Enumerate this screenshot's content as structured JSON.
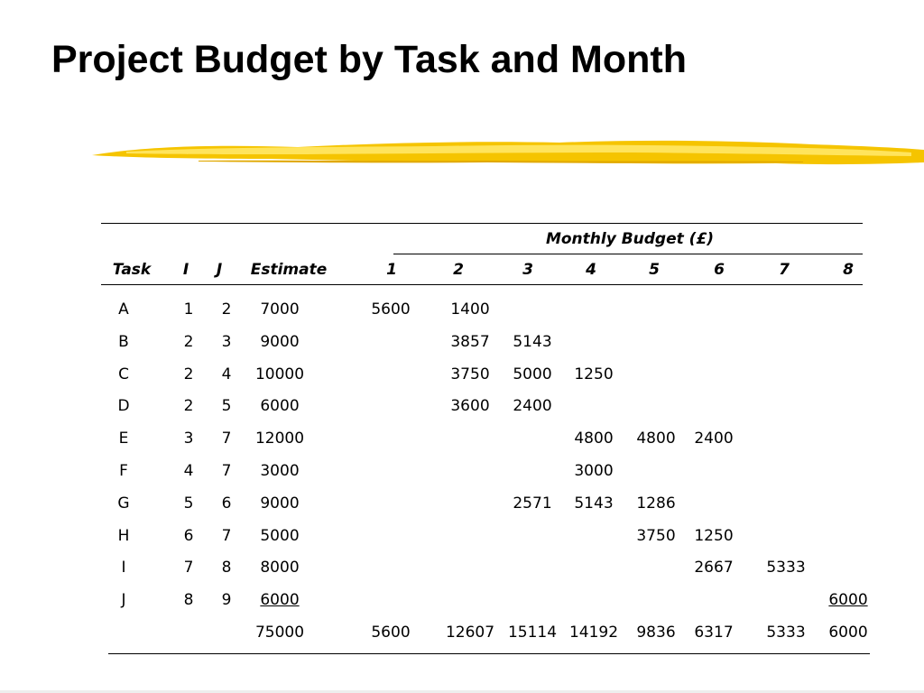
{
  "title": "Project Budget by Task and Month",
  "colors": {
    "brush": "#f5c400",
    "brush_light": "#ffe45c"
  },
  "table": {
    "group_header": "Monthly Budget (£)",
    "columns": [
      "Task",
      "I",
      "J",
      "Estimate",
      "1",
      "2",
      "3",
      "4",
      "5",
      "6",
      "7",
      "8"
    ],
    "rows": [
      [
        "A",
        "1",
        "2",
        "7000",
        "5600",
        "1400",
        "",
        "",
        "",
        "",
        "",
        ""
      ],
      [
        "B",
        "2",
        "3",
        "9000",
        "",
        "3857",
        "5143",
        "",
        "",
        "",
        "",
        ""
      ],
      [
        "C",
        "2",
        "4",
        "10000",
        "",
        "3750",
        "5000",
        "1250",
        "",
        "",
        "",
        ""
      ],
      [
        "D",
        "2",
        "5",
        "6000",
        "",
        "3600",
        "2400",
        "",
        "",
        "",
        "",
        ""
      ],
      [
        "E",
        "3",
        "7",
        "12000",
        "",
        "",
        "",
        "4800",
        "4800",
        "2400",
        "",
        ""
      ],
      [
        "F",
        "4",
        "7",
        "3000",
        "",
        "",
        "",
        "3000",
        "",
        "",
        "",
        ""
      ],
      [
        "G",
        "5",
        "6",
        "9000",
        "",
        "",
        "2571",
        "5143",
        "1286",
        "",
        "",
        ""
      ],
      [
        "H",
        "6",
        "7",
        "5000",
        "",
        "",
        "",
        "",
        "3750",
        "1250",
        "",
        ""
      ],
      [
        "I",
        "7",
        "8",
        "8000",
        "",
        "",
        "",
        "",
        "",
        "2667",
        "5333",
        ""
      ],
      [
        "J",
        "8",
        "9",
        "6000",
        "",
        "",
        "",
        "",
        "",
        "",
        "",
        "6000"
      ]
    ],
    "totals": [
      "",
      "",
      "",
      "75000",
      "5600",
      "12607",
      "15114",
      "14192",
      "9836",
      "6317",
      "5333",
      "6000"
    ]
  }
}
